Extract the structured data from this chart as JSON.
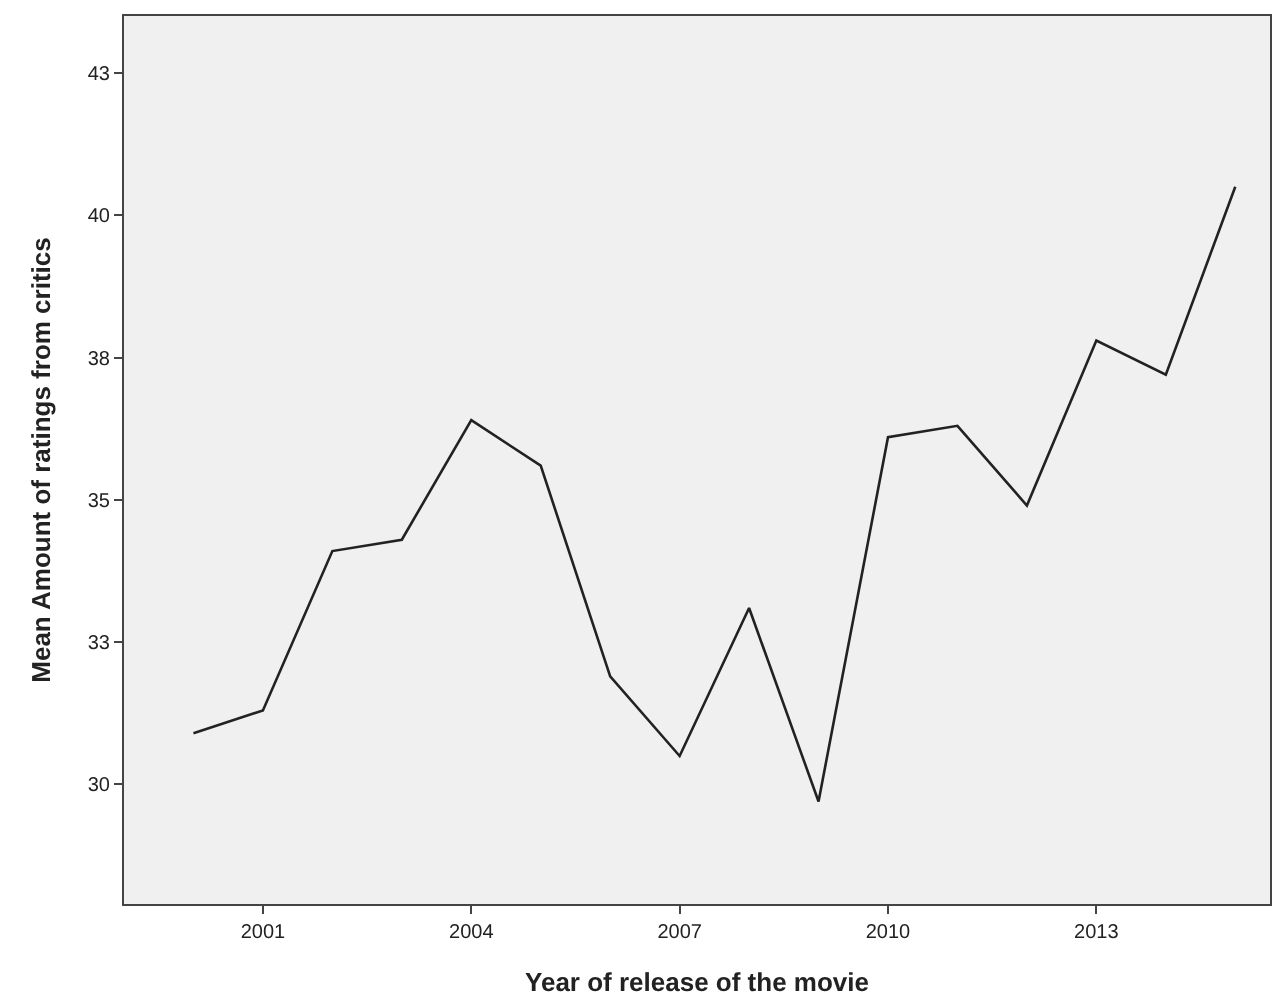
{
  "chart_data": {
    "type": "line",
    "xlabel": "Year of release of the movie",
    "ylabel": "Mean Amount of ratings from critics",
    "x": [
      2000,
      2001,
      2002,
      2003,
      2004,
      2005,
      2006,
      2007,
      2008,
      2009,
      2010,
      2011,
      2012,
      2013,
      2014,
      2015
    ],
    "series": [
      {
        "color": "#222222",
        "values": [
          30.9,
          31.3,
          34.1,
          34.3,
          36.4,
          35.6,
          31.9,
          30.5,
          33.1,
          29.7,
          36.1,
          36.3,
          34.9,
          37.8,
          37.2,
          40.5
        ]
      }
    ],
    "xlim": [
      1999,
      2015.5
    ],
    "xticks": [
      2001,
      2004,
      2007,
      2010,
      2013
    ],
    "ylim": [
      27.9,
      43.5
    ],
    "yticks": [
      {
        "value": 30,
        "label": "30"
      },
      {
        "value": 32.5,
        "label": "33"
      },
      {
        "value": 35,
        "label": "35"
      },
      {
        "value": 37.5,
        "label": "38"
      },
      {
        "value": 40,
        "label": "40"
      },
      {
        "value": 42.5,
        "label": "43"
      }
    ],
    "grid": false,
    "marker": "none",
    "line_style": "solid"
  }
}
